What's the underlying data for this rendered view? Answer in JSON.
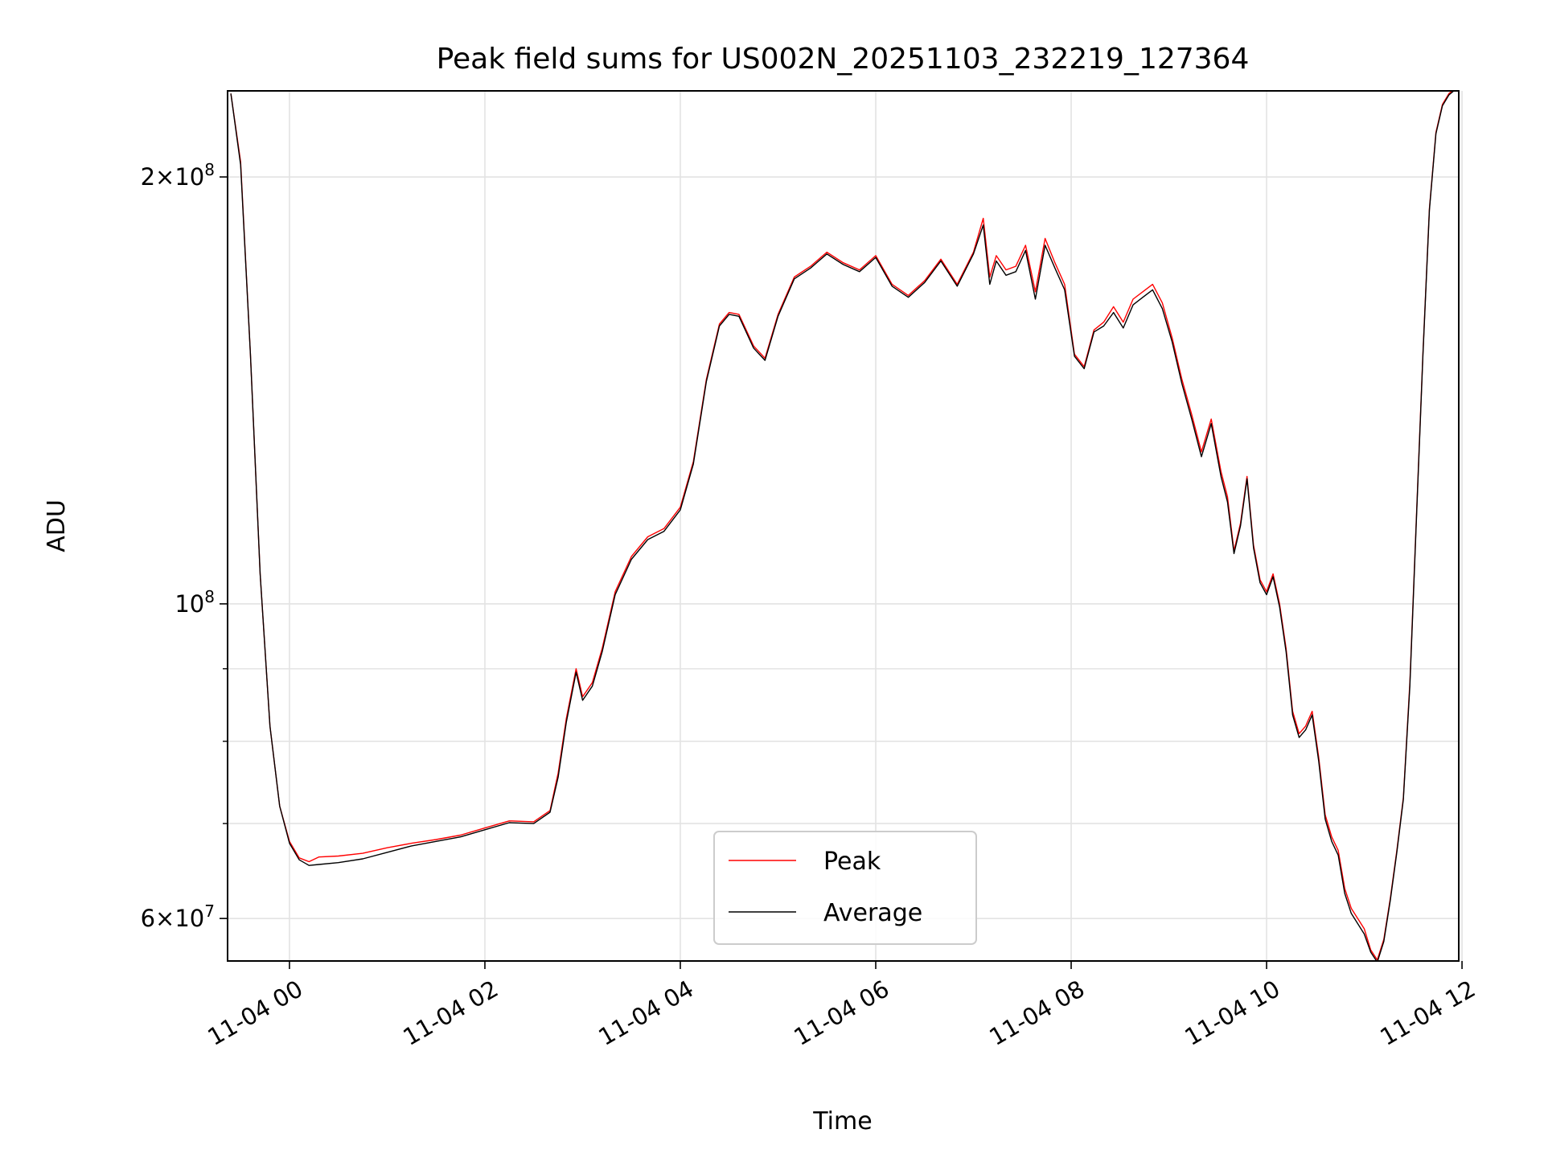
{
  "chart_data": {
    "type": "line",
    "title": "Peak field sums for US002N_20251103_232219_127364",
    "xlabel": "Time",
    "ylabel": "ADU",
    "yscale": "log",
    "grid": true,
    "legend_position": "lower center",
    "x_range": [
      "2025-11-03 23:22",
      "2025-11-04 11:58"
    ],
    "ylim": [
      56000000,
      230000000
    ],
    "x_ticks": [
      {
        "x": "2025-11-04 00:00",
        "label": "11-04 00"
      },
      {
        "x": "2025-11-04 02:00",
        "label": "11-04 02"
      },
      {
        "x": "2025-11-04 04:00",
        "label": "11-04 04"
      },
      {
        "x": "2025-11-04 06:00",
        "label": "11-04 06"
      },
      {
        "x": "2025-11-04 08:00",
        "label": "11-04 08"
      },
      {
        "x": "2025-11-04 10:00",
        "label": "11-04 10"
      },
      {
        "x": "2025-11-04 12:00",
        "label": "11-04 12"
      }
    ],
    "y_ticks": [
      {
        "y": 60000000,
        "base": "6",
        "mant": "10",
        "exp": "7"
      },
      {
        "y": 100000000,
        "base": "",
        "mant": "10",
        "exp": "8"
      },
      {
        "y": 200000000,
        "base": "2",
        "mant": "10",
        "exp": "8"
      }
    ],
    "y_minor_ticks": [
      70000000,
      80000000,
      90000000
    ],
    "series": [
      {
        "name": "Peak",
        "color": "#ff0000",
        "x": [
          "2025-11-03 23:24",
          "2025-11-03 23:30",
          "2025-11-03 23:36",
          "2025-11-03 23:42",
          "2025-11-03 23:48",
          "2025-11-03 23:54",
          "2025-11-04 00:00",
          "2025-11-04 00:06",
          "2025-11-04 00:12",
          "2025-11-04 00:18",
          "2025-11-04 00:30",
          "2025-11-04 00:45",
          "2025-11-04 01:00",
          "2025-11-04 01:15",
          "2025-11-04 01:30",
          "2025-11-04 01:45",
          "2025-11-04 02:00",
          "2025-11-04 02:15",
          "2025-11-04 02:30",
          "2025-11-04 02:40",
          "2025-11-04 02:45",
          "2025-11-04 02:50",
          "2025-11-04 02:56",
          "2025-11-04 03:00",
          "2025-11-04 03:06",
          "2025-11-04 03:12",
          "2025-11-04 03:20",
          "2025-11-04 03:30",
          "2025-11-04 03:40",
          "2025-11-04 03:50",
          "2025-11-04 04:00",
          "2025-11-04 04:08",
          "2025-11-04 04:16",
          "2025-11-04 04:24",
          "2025-11-04 04:30",
          "2025-11-04 04:36",
          "2025-11-04 04:45",
          "2025-11-04 04:52",
          "2025-11-04 05:00",
          "2025-11-04 05:10",
          "2025-11-04 05:20",
          "2025-11-04 05:30",
          "2025-11-04 05:40",
          "2025-11-04 05:50",
          "2025-11-04 06:00",
          "2025-11-04 06:10",
          "2025-11-04 06:20",
          "2025-11-04 06:30",
          "2025-11-04 06:40",
          "2025-11-04 06:50",
          "2025-11-04 07:00",
          "2025-11-04 07:06",
          "2025-11-04 07:10",
          "2025-11-04 07:14",
          "2025-11-04 07:20",
          "2025-11-04 07:26",
          "2025-11-04 07:32",
          "2025-11-04 07:38",
          "2025-11-04 07:44",
          "2025-11-04 07:50",
          "2025-11-04 07:56",
          "2025-11-04 08:02",
          "2025-11-04 08:08",
          "2025-11-04 08:14",
          "2025-11-04 08:20",
          "2025-11-04 08:26",
          "2025-11-04 08:32",
          "2025-11-04 08:38",
          "2025-11-04 08:44",
          "2025-11-04 08:50",
          "2025-11-04 08:56",
          "2025-11-04 09:02",
          "2025-11-04 09:08",
          "2025-11-04 09:14",
          "2025-11-04 09:20",
          "2025-11-04 09:26",
          "2025-11-04 09:32",
          "2025-11-04 09:36",
          "2025-11-04 09:40",
          "2025-11-04 09:44",
          "2025-11-04 09:48",
          "2025-11-04 09:52",
          "2025-11-04 09:56",
          "2025-11-04 10:00",
          "2025-11-04 10:04",
          "2025-11-04 10:08",
          "2025-11-04 10:12",
          "2025-11-04 10:16",
          "2025-11-04 10:20",
          "2025-11-04 10:24",
          "2025-11-04 10:28",
          "2025-11-04 10:32",
          "2025-11-04 10:36",
          "2025-11-04 10:40",
          "2025-11-04 10:44",
          "2025-11-04 10:48",
          "2025-11-04 10:52",
          "2025-11-04 10:56",
          "2025-11-04 11:00",
          "2025-11-04 11:04",
          "2025-11-04 11:08",
          "2025-11-04 11:12",
          "2025-11-04 11:16",
          "2025-11-04 11:20",
          "2025-11-04 11:24",
          "2025-11-04 11:28",
          "2025-11-04 11:32",
          "2025-11-04 11:36",
          "2025-11-04 11:40",
          "2025-11-04 11:44",
          "2025-11-04 11:48",
          "2025-11-04 11:52",
          "2025-11-04 11:56"
        ],
        "y": [
          229000000,
          205000000,
          150000000,
          105000000,
          82000000,
          72000000,
          68000000,
          66200000,
          65800000,
          66300000,
          66400000,
          66700000,
          67300000,
          67800000,
          68200000,
          68700000,
          69500000,
          70300000,
          70200000,
          71500000,
          76000000,
          83000000,
          90000000,
          86000000,
          88000000,
          93000000,
          102000000,
          108000000,
          111500000,
          113000000,
          117000000,
          126000000,
          144000000,
          157500000,
          160500000,
          160000000,
          152000000,
          149000000,
          160000000,
          170000000,
          173000000,
          177000000,
          174000000,
          172000000,
          176000000,
          168000000,
          165000000,
          169000000,
          175000000,
          168000000,
          177000000,
          187000000,
          170000000,
          176000000,
          172000000,
          173000000,
          179000000,
          166000000,
          181000000,
          174000000,
          168000000,
          150000000,
          147000000,
          156000000,
          158000000,
          162000000,
          158000000,
          164000000,
          166000000,
          168000000,
          163000000,
          154000000,
          144000000,
          136000000,
          128000000,
          135000000,
          124000000,
          119000000,
          109000000,
          114000000,
          123000000,
          110000000,
          104000000,
          102000000,
          105000000,
          100000000,
          93000000,
          84000000,
          81000000,
          82000000,
          84000000,
          78000000,
          71000000,
          68500000,
          67000000,
          63000000,
          61000000,
          60000000,
          59000000,
          57000000,
          56100000,
          58000000,
          62000000,
          67000000,
          73000000,
          88000000,
          115000000,
          150000000,
          190000000,
          215000000,
          225000000,
          229000000,
          231000000
        ]
      },
      {
        "name": "Average",
        "color": "#000000",
        "x": [
          "2025-11-03 23:24",
          "2025-11-03 23:30",
          "2025-11-03 23:36",
          "2025-11-03 23:42",
          "2025-11-03 23:48",
          "2025-11-03 23:54",
          "2025-11-04 00:00",
          "2025-11-04 00:06",
          "2025-11-04 00:12",
          "2025-11-04 00:18",
          "2025-11-04 00:30",
          "2025-11-04 00:45",
          "2025-11-04 01:00",
          "2025-11-04 01:15",
          "2025-11-04 01:30",
          "2025-11-04 01:45",
          "2025-11-04 02:00",
          "2025-11-04 02:15",
          "2025-11-04 02:30",
          "2025-11-04 02:40",
          "2025-11-04 02:45",
          "2025-11-04 02:50",
          "2025-11-04 02:56",
          "2025-11-04 03:00",
          "2025-11-04 03:06",
          "2025-11-04 03:12",
          "2025-11-04 03:20",
          "2025-11-04 03:30",
          "2025-11-04 03:40",
          "2025-11-04 03:50",
          "2025-11-04 04:00",
          "2025-11-04 04:08",
          "2025-11-04 04:16",
          "2025-11-04 04:24",
          "2025-11-04 04:30",
          "2025-11-04 04:36",
          "2025-11-04 04:45",
          "2025-11-04 04:52",
          "2025-11-04 05:00",
          "2025-11-04 05:10",
          "2025-11-04 05:20",
          "2025-11-04 05:30",
          "2025-11-04 05:40",
          "2025-11-04 05:50",
          "2025-11-04 06:00",
          "2025-11-04 06:10",
          "2025-11-04 06:20",
          "2025-11-04 06:30",
          "2025-11-04 06:40",
          "2025-11-04 06:50",
          "2025-11-04 07:00",
          "2025-11-04 07:06",
          "2025-11-04 07:10",
          "2025-11-04 07:14",
          "2025-11-04 07:20",
          "2025-11-04 07:26",
          "2025-11-04 07:32",
          "2025-11-04 07:38",
          "2025-11-04 07:44",
          "2025-11-04 07:50",
          "2025-11-04 07:56",
          "2025-11-04 08:02",
          "2025-11-04 08:08",
          "2025-11-04 08:14",
          "2025-11-04 08:20",
          "2025-11-04 08:26",
          "2025-11-04 08:32",
          "2025-11-04 08:38",
          "2025-11-04 08:44",
          "2025-11-04 08:50",
          "2025-11-04 08:56",
          "2025-11-04 09:02",
          "2025-11-04 09:08",
          "2025-11-04 09:14",
          "2025-11-04 09:20",
          "2025-11-04 09:26",
          "2025-11-04 09:32",
          "2025-11-04 09:36",
          "2025-11-04 09:40",
          "2025-11-04 09:44",
          "2025-11-04 09:48",
          "2025-11-04 09:52",
          "2025-11-04 09:56",
          "2025-11-04 10:00",
          "2025-11-04 10:04",
          "2025-11-04 10:08",
          "2025-11-04 10:12",
          "2025-11-04 10:16",
          "2025-11-04 10:20",
          "2025-11-04 10:24",
          "2025-11-04 10:28",
          "2025-11-04 10:32",
          "2025-11-04 10:36",
          "2025-11-04 10:40",
          "2025-11-04 10:44",
          "2025-11-04 10:48",
          "2025-11-04 10:52",
          "2025-11-04 10:56",
          "2025-11-04 11:00",
          "2025-11-04 11:04",
          "2025-11-04 11:08",
          "2025-11-04 11:12",
          "2025-11-04 11:16",
          "2025-11-04 11:20",
          "2025-11-04 11:24",
          "2025-11-04 11:28",
          "2025-11-04 11:32",
          "2025-11-04 11:36",
          "2025-11-04 11:40",
          "2025-11-04 11:44",
          "2025-11-04 11:48",
          "2025-11-04 11:52",
          "2025-11-04 11:56"
        ],
        "y": [
          229000000,
          204000000,
          150000000,
          105000000,
          82000000,
          72000000,
          67800000,
          66000000,
          65400000,
          65500000,
          65700000,
          66100000,
          66800000,
          67500000,
          68000000,
          68500000,
          69300000,
          70100000,
          70000000,
          71300000,
          75500000,
          82500000,
          89500000,
          85500000,
          87500000,
          92500000,
          101500000,
          107500000,
          111000000,
          112500000,
          116500000,
          125500000,
          143500000,
          157000000,
          160000000,
          159500000,
          151500000,
          148500000,
          159500000,
          169500000,
          172500000,
          176500000,
          173500000,
          171500000,
          175500000,
          167500000,
          164500000,
          168500000,
          174500000,
          167500000,
          176500000,
          185000000,
          168000000,
          174500000,
          170500000,
          171500000,
          177500000,
          164000000,
          179000000,
          172500000,
          166500000,
          149500000,
          146500000,
          155500000,
          157000000,
          160500000,
          156500000,
          162500000,
          164500000,
          166500000,
          161500000,
          153000000,
          143000000,
          135000000,
          127000000,
          134000000,
          123000000,
          118000000,
          108500000,
          113500000,
          122500000,
          109500000,
          103500000,
          101500000,
          104500000,
          99500000,
          92500000,
          83500000,
          80500000,
          81500000,
          83500000,
          77500000,
          70500000,
          68000000,
          66500000,
          62500000,
          60500000,
          59500000,
          58500000,
          56800000,
          55900000,
          57800000,
          61800000,
          66800000,
          72800000,
          87500000,
          114500000,
          149500000,
          189500000,
          214500000,
          224500000,
          228500000,
          230500000
        ]
      }
    ]
  }
}
